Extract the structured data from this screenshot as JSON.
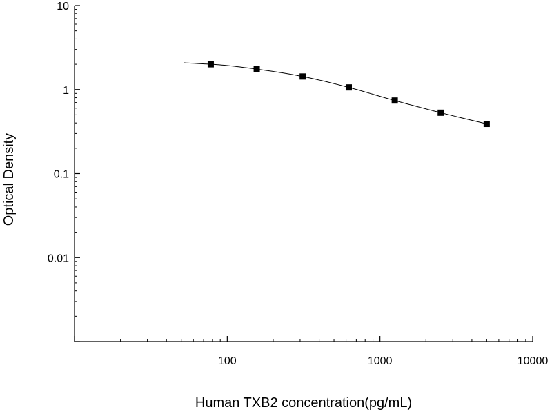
{
  "chart_data": {
    "type": "scatter",
    "title": "",
    "xlabel": "Human TXB2 concentration(pg/mL)",
    "ylabel": "Optical Density",
    "xscale": "log",
    "yscale": "log",
    "xlim": [
      10,
      10000
    ],
    "ylim": [
      0.001,
      10
    ],
    "grid": false,
    "legend": "none",
    "x_ticks": [
      {
        "value": 100,
        "label": "100"
      },
      {
        "value": 1000,
        "label": "1000"
      },
      {
        "value": 10000,
        "label": "10000"
      }
    ],
    "y_ticks": [
      {
        "value": 10,
        "label": "10"
      },
      {
        "value": 1,
        "label": "1"
      },
      {
        "value": 0.1,
        "label": "0.1"
      },
      {
        "value": 0.01,
        "label": "0.01"
      }
    ],
    "series": [
      {
        "points": [
          {
            "x": 78,
            "y": 2.0
          },
          {
            "x": 156,
            "y": 1.75
          },
          {
            "x": 312,
            "y": 1.43
          },
          {
            "x": 625,
            "y": 1.06
          },
          {
            "x": 1250,
            "y": 0.74
          },
          {
            "x": 2500,
            "y": 0.53
          },
          {
            "x": 5000,
            "y": 0.39
          }
        ],
        "fit_curve": {
          "x_range": [
            52,
            5000
          ]
        },
        "marker": "square",
        "color": "#000000"
      }
    ]
  }
}
